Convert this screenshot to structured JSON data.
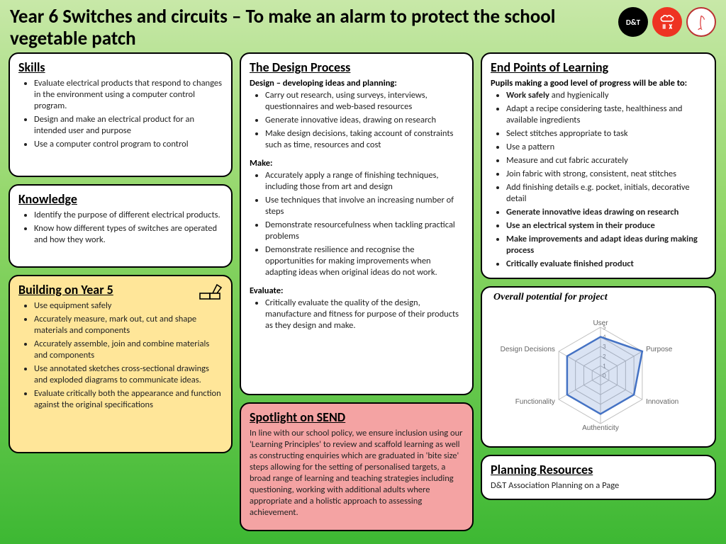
{
  "title": "Year 6 Switches and circuits – To make an alarm to protect the school vegetable patch",
  "badges": {
    "dt": "D&T"
  },
  "skills": {
    "heading": "Skills",
    "items": [
      "Evaluate electrical products that respond to changes in the environment using a computer control program.",
      "Design and make an electrical product for an intended user and purpose",
      "Use a computer control program to control"
    ]
  },
  "knowledge": {
    "heading": "Knowledge",
    "items": [
      "Identify the purpose of different electrical products.",
      "Know how different types of switches are operated and how they work."
    ]
  },
  "building": {
    "heading": "Building on Year 5",
    "items": [
      "Use equipment safely",
      "Accurately measure, mark out, cut and shape materials and components",
      "Accurately assemble, join and combine materials and components",
      "Use annotated sketches cross-sectional drawings and exploded diagrams to communicate ideas.",
      "Evaluate critically both the appearance and function against the original specifications"
    ]
  },
  "design": {
    "heading": "The Design Process",
    "sub1": "Design – developing ideas and planning:",
    "items1": [
      "Carry out research, using surveys, interviews, questionnaires and web-based resources",
      "Generate innovative ideas, drawing on research",
      "Make design decisions, taking account of constraints such as time, resources and cost"
    ],
    "sub2": "Make:",
    "items2": [
      "Accurately apply a range of finishing techniques, including those from art and design",
      "Use techniques that involve an increasing number of steps",
      "Demonstrate resourcefulness when tackling practical problems",
      "Demonstrate resilience and recognise the opportunities for making improvements when adapting ideas when original ideas do not work."
    ],
    "sub3": "Evaluate:",
    "items3": [
      "Critically evaluate the quality of the design, manufacture and fitness for purpose of their products as they design and make."
    ]
  },
  "send": {
    "heading": "Spotlight on SEND",
    "text": "In line with our school policy, we ensure inclusion using our 'Learning Principles' to review and scaffold learning as well as constructing enquiries which are graduated in 'bite size' steps allowing for the setting of personalised targets, a broad range of learning and teaching strategies including questioning, working with additional adults where appropriate and a holistic approach to assessing achievement."
  },
  "endpoints": {
    "heading": "End Points of Learning",
    "sub": "Pupils making a good level of progress will be able to:",
    "items": [
      {
        "t": "Work safely",
        "rest": " and hygienically",
        "b": true
      },
      {
        "t": "Adapt a recipe considering taste, healthiness and available ingredients"
      },
      {
        "t": "Select stitches appropriate to task"
      },
      {
        "t": "Use a pattern"
      },
      {
        "t": "Measure and cut fabric accurately"
      },
      {
        "t": "Join fabric with strong, consistent, neat stitches"
      },
      {
        "t": "Add finishing details e.g. pocket, initials, decorative detail"
      },
      {
        "t": "Generate innovative ideas drawing on research",
        "b": true
      },
      {
        "t": "Use an electrical system in their produce",
        "b": true
      },
      {
        "t": "Make improvements and adapt ideas during making process",
        "b": true
      },
      {
        "t": "Critically evaluate finished product",
        "b": true
      }
    ]
  },
  "radar": {
    "title": "Overall potential for project",
    "axes": [
      "User",
      "Purpose",
      "Innovation",
      "Authenticity",
      "Functionality",
      "Design Decisions"
    ],
    "max": 5,
    "ticks": [
      0,
      1,
      2,
      3,
      4,
      5
    ],
    "values": [
      4,
      5,
      4,
      4,
      4,
      4
    ],
    "line_color": "#4472c4",
    "fill_color": "#4472c433",
    "grid_color": "#bfbfbf",
    "axis_line_color": "#bfbfbf",
    "text_color": "#666666"
  },
  "planning": {
    "heading": "Planning Resources",
    "text": "D&T Association Planning on a Page"
  }
}
